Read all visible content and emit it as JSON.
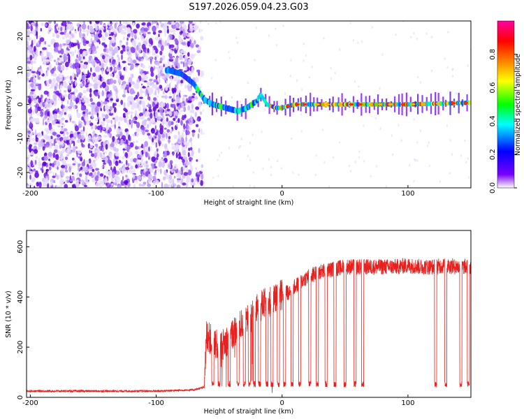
{
  "title": "S197.2026.059.04.23.G03",
  "chart_data": [
    {
      "type": "heatmap",
      "panel": "top",
      "xlabel": "Height of straight line (km)",
      "ylabel": "Frequency (Hz)",
      "xlim": [
        -203,
        150
      ],
      "ylim": [
        -24.5,
        24.5
      ],
      "x_ticks": [
        -200,
        -100,
        0,
        100
      ],
      "y_ticks": [
        -20,
        -10,
        0,
        10,
        20
      ],
      "x_tick_labels": [
        "-200",
        "-100",
        "0",
        "100"
      ],
      "y_tick_labels": [
        "-20",
        "-10",
        "0",
        "10",
        "20"
      ],
      "noise_region_x": [
        -203,
        -70
      ],
      "signal_track": [
        {
          "x": -90,
          "f": 10
        },
        {
          "x": -80,
          "f": 9
        },
        {
          "x": -70,
          "f": 6
        },
        {
          "x": -62,
          "f": 1.5
        },
        {
          "x": -55,
          "f": 0
        },
        {
          "x": -45,
          "f": -1
        },
        {
          "x": -35,
          "f": -2
        },
        {
          "x": -28,
          "f": -1
        },
        {
          "x": -20,
          "f": 1
        },
        {
          "x": -17,
          "f": 3
        },
        {
          "x": -12,
          "f": 0
        },
        {
          "x": -5,
          "f": -1
        },
        {
          "x": 0,
          "f": -1
        },
        {
          "x": 10,
          "f": 0
        },
        {
          "x": 50,
          "f": 0
        },
        {
          "x": 100,
          "f": 0
        },
        {
          "x": 150,
          "f": 0.5
        }
      ],
      "colorbar": {
        "label": "Normalized spectral amplitude",
        "range": [
          0,
          1
        ],
        "ticks": [
          0,
          0.2,
          0.4,
          0.6,
          0.8
        ],
        "tick_labels": [
          "0.0",
          "0.2",
          "0.4",
          "0.6",
          "0.8"
        ],
        "colors": [
          "#ffffff",
          "#7a00ff",
          "#0000ff",
          "#00ffff",
          "#00ff00",
          "#ffff00",
          "#ff8000",
          "#ff0000",
          "#ff00a0"
        ]
      }
    },
    {
      "type": "line",
      "panel": "bottom",
      "xlabel": "Height of straight line (km)",
      "ylabel": "SNR (10 * v/v)",
      "xlim": [
        -203,
        150
      ],
      "ylim": [
        0,
        665
      ],
      "x_ticks": [
        -200,
        -100,
        0,
        100
      ],
      "y_ticks": [
        0,
        200,
        400,
        600
      ],
      "x_tick_labels": [
        "-200",
        "-100",
        "0",
        "100"
      ],
      "y_tick_labels": [
        "0",
        "200",
        "400",
        "600"
      ],
      "color": "#e8211e",
      "series": [
        {
          "name": "SNR",
          "x": [
            -203,
            -150,
            -100,
            -70,
            -62,
            -60,
            -55,
            -50,
            -45,
            -40,
            -35,
            -30,
            -25,
            -20,
            -15,
            -10,
            -5,
            0,
            5,
            10,
            15,
            20,
            30,
            40,
            50,
            60,
            70,
            80,
            90,
            100,
            110,
            120,
            130,
            140,
            150
          ],
          "y": [
            25,
            25,
            25,
            30,
            40,
            250,
            220,
            200,
            220,
            250,
            280,
            300,
            320,
            350,
            370,
            380,
            390,
            410,
            420,
            440,
            460,
            480,
            500,
            510,
            520,
            520,
            520,
            520,
            520,
            525,
            520,
            520,
            525,
            520,
            520
          ]
        }
      ],
      "dropouts_x": [
        -55,
        -50,
        -42,
        -35,
        -30,
        -26,
        -22,
        -18,
        -12,
        -8,
        -3,
        2,
        8,
        14,
        22,
        28,
        35,
        42,
        50,
        58,
        64,
        122,
        130,
        142,
        148
      ],
      "dropout_floor": 40
    }
  ]
}
